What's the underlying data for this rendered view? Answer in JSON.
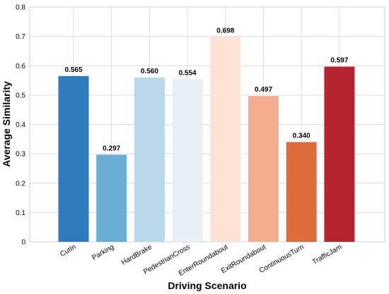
{
  "chart_data": {
    "type": "bar",
    "categories": [
      "CutIn",
      "Parking",
      "HardBrake",
      "PedestrianCross",
      "EnterRoundabout",
      "ExitRoundabout",
      "ContinuousTurn",
      "TrafficJam"
    ],
    "values": [
      0.565,
      0.297,
      0.56,
      0.554,
      0.698,
      0.497,
      0.34,
      0.597
    ],
    "value_labels": [
      "0.565",
      "0.297",
      "0.560",
      "0.554",
      "0.698",
      "0.497",
      "0.340",
      "0.597"
    ],
    "colors": [
      "#2f7bbb",
      "#6aaed6",
      "#b9d8ea",
      "#e6eff4",
      "#fde2d5",
      "#f4ad8e",
      "#dd6b3b",
      "#b4242e"
    ],
    "title": "",
    "xlabel": "Driving Scenario",
    "ylabel": "Average Similarity",
    "ylim": [
      0,
      0.8
    ],
    "yticks": [
      "0",
      "0.1",
      "0.2",
      "0.3",
      "0.4",
      "0.5",
      "0.6",
      "0.7",
      "0.8"
    ],
    "grid": true
  }
}
